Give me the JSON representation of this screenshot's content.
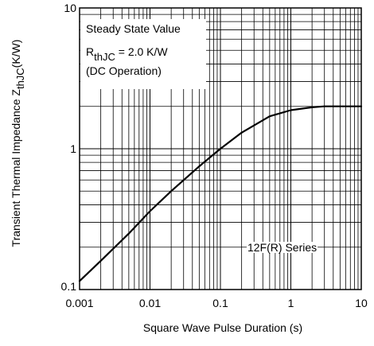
{
  "chart_data": {
    "type": "line",
    "title": "",
    "xlabel": "Square Wave Pulse Duration (s)",
    "ylabel": {
      "main": "Transient Thermal Impedance Z",
      "sub": "thJC",
      "unit": "(K/W)"
    },
    "xscale": "log",
    "yscale": "log",
    "xlim": [
      0.001,
      10
    ],
    "ylim": [
      0.1,
      10
    ],
    "grid": true,
    "xticks": [
      {
        "value": 0.001,
        "label": "0.001"
      },
      {
        "value": 0.01,
        "label": "0.01"
      },
      {
        "value": 0.1,
        "label": "0.1"
      },
      {
        "value": 1,
        "label": "1"
      },
      {
        "value": 10,
        "label": "10"
      }
    ],
    "yticks": [
      {
        "value": 0.1,
        "label": "0.1"
      },
      {
        "value": 1,
        "label": "1"
      },
      {
        "value": 10,
        "label": "10"
      }
    ],
    "annotations": {
      "steady_line1": "Steady State Value",
      "steady_r": "R",
      "steady_sub": "thJC",
      "steady_eq": " = 2.0 K/W",
      "steady_line3": "(DC Operation)",
      "series_label": "12F(R) Series"
    },
    "series": [
      {
        "name": "12F(R) Series",
        "x": [
          0.001,
          0.002,
          0.005,
          0.01,
          0.02,
          0.05,
          0.1,
          0.2,
          0.5,
          1,
          2,
          3,
          5,
          10
        ],
        "y": [
          0.115,
          0.16,
          0.25,
          0.36,
          0.5,
          0.75,
          1.0,
          1.3,
          1.7,
          1.88,
          1.97,
          2.0,
          2.0,
          2.0
        ]
      }
    ]
  }
}
